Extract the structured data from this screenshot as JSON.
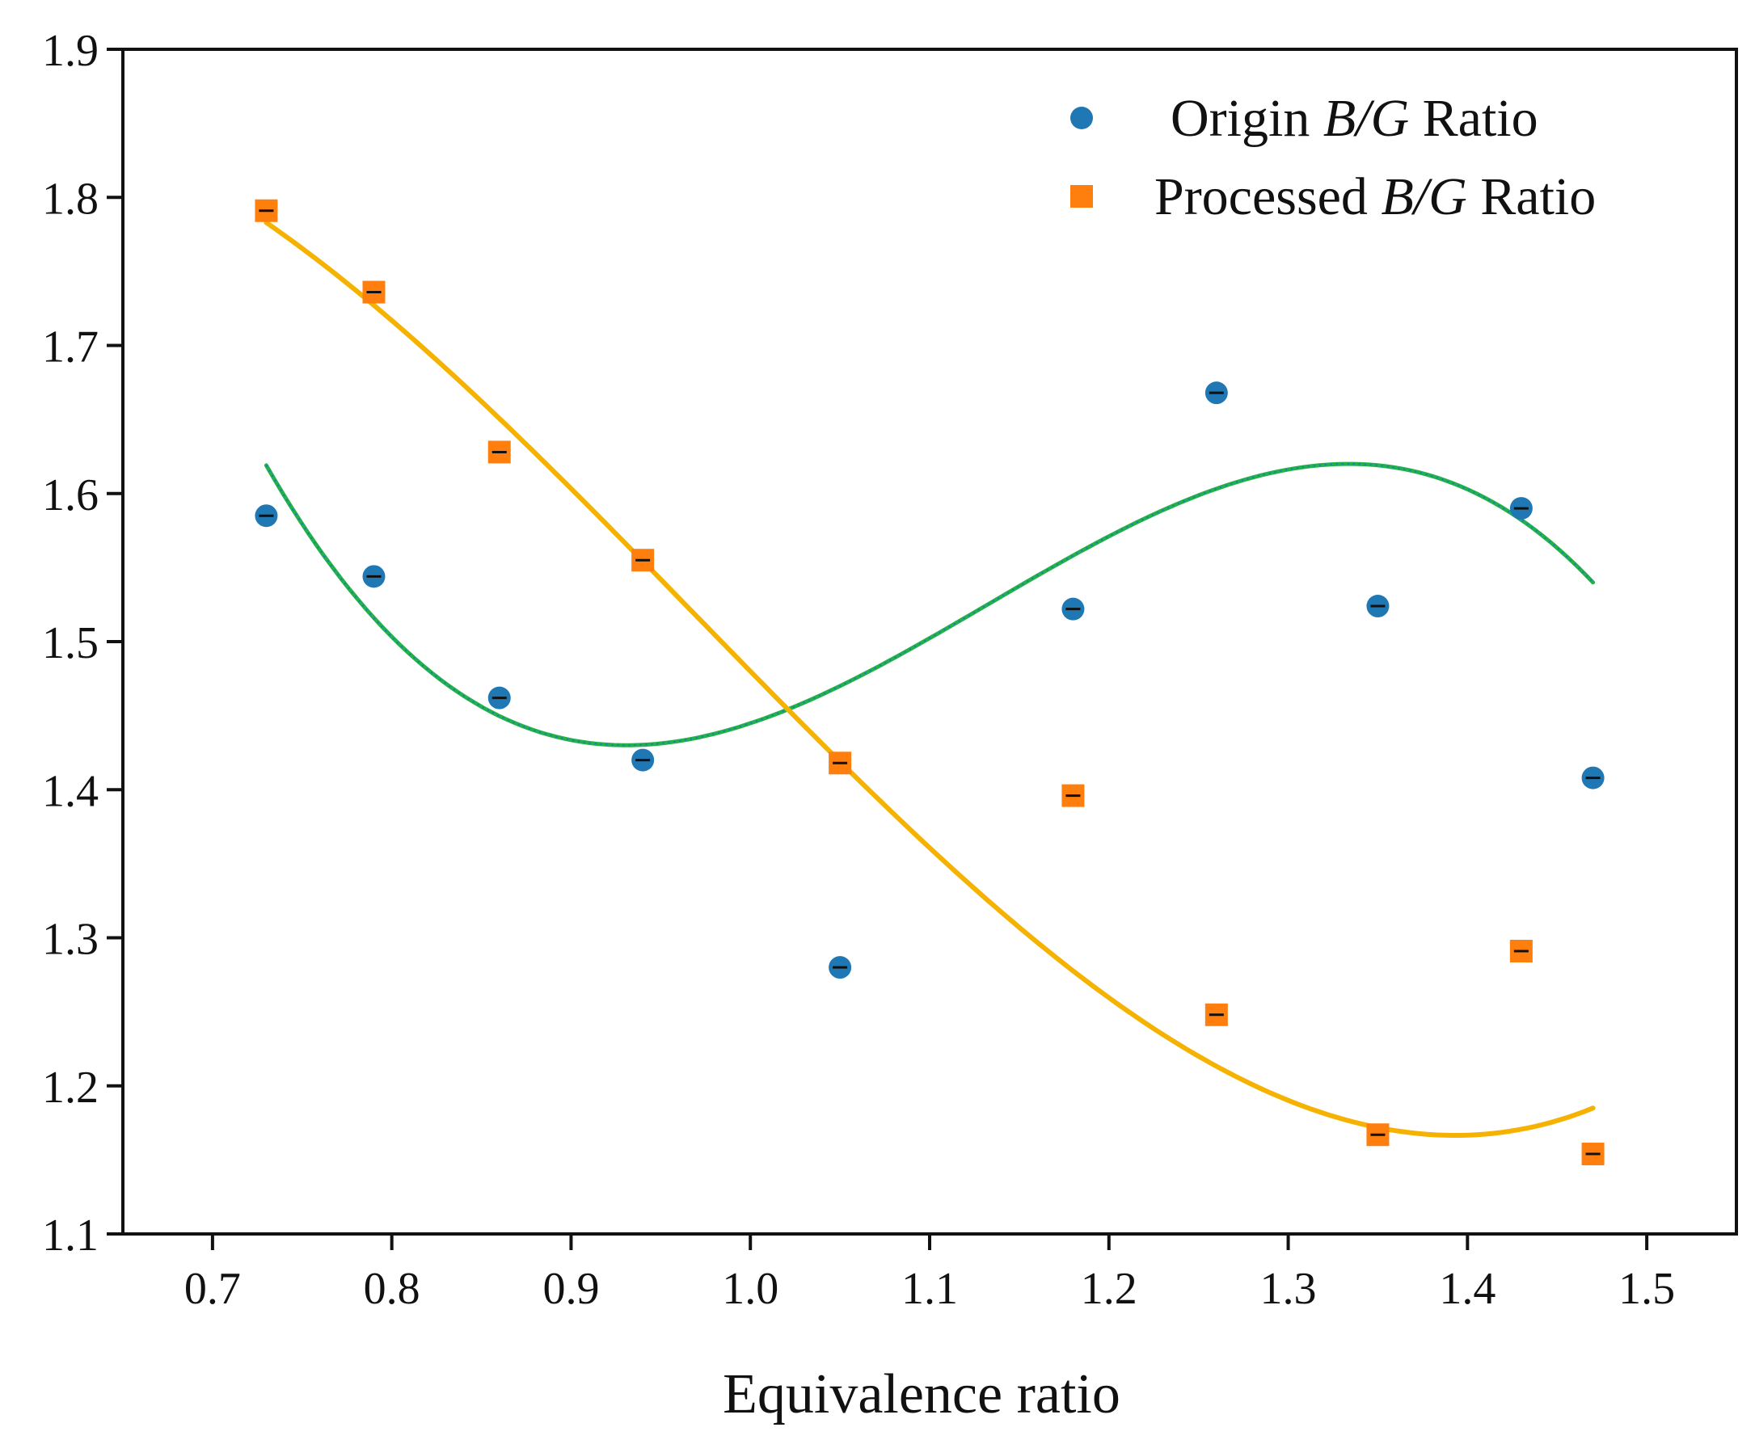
{
  "chart_data": {
    "type": "scatter",
    "title": "",
    "xlabel": "Equivalence ratio",
    "ylabel": "",
    "xlim": [
      0.65,
      1.55
    ],
    "ylim": [
      1.1,
      1.9
    ],
    "xticks": [
      0.7,
      0.8,
      0.9,
      1.0,
      1.1,
      1.2,
      1.3,
      1.4,
      1.5
    ],
    "yticks": [
      1.1,
      1.2,
      1.3,
      1.4,
      1.5,
      1.6,
      1.7,
      1.8,
      1.9
    ],
    "xtick_labels": [
      "0.7",
      "0.8",
      "0.9",
      "1.0",
      "1.1",
      "1.2",
      "1.3",
      "1.4",
      "1.5"
    ],
    "ytick_labels": [
      "1.1",
      "1.2",
      "1.3",
      "1.4",
      "1.5",
      "1.6",
      "1.7",
      "1.8",
      "1.9"
    ],
    "grid": false,
    "legend_position": "top-right",
    "x": [
      0.73,
      0.79,
      0.86,
      0.94,
      1.05,
      1.18,
      1.26,
      1.35,
      1.43,
      1.47
    ],
    "series": [
      {
        "name": "Origin B/G Ratio",
        "legend_prefix": "Origin ",
        "legend_italic": "B/G",
        "legend_suffix": " Ratio",
        "marker": "circle",
        "color": "#1f77b4",
        "values": [
          1.585,
          1.544,
          1.462,
          1.42,
          1.28,
          1.522,
          1.668,
          1.524,
          1.59,
          1.408
        ],
        "fit": {
          "type": "polynomial-3",
          "color": "#22b24c",
          "dotted_color": "#1f77b4",
          "x_range": [
            0.73,
            1.47
          ],
          "anchor_x": [
            0.73,
            0.93,
            1.335,
            1.47
          ],
          "anchor_y": [
            1.619,
            1.43,
            1.62,
            1.54
          ]
        }
      },
      {
        "name": "Processed B/G Ratio",
        "legend_prefix": "Processed ",
        "legend_italic": "B/G",
        "legend_suffix": " Ratio",
        "marker": "square",
        "color": "#ff7f0e",
        "values": [
          1.791,
          1.736,
          1.628,
          1.555,
          1.418,
          1.396,
          1.248,
          1.167,
          1.291,
          1.154
        ],
        "fit": {
          "type": "polynomial-3",
          "color": "#f5b200",
          "x_range": [
            0.73,
            1.47
          ],
          "anchor_x": [
            0.73,
            1.0,
            1.25,
            1.47
          ],
          "anchor_y": [
            1.783,
            1.48,
            1.22,
            1.185
          ]
        }
      }
    ]
  }
}
